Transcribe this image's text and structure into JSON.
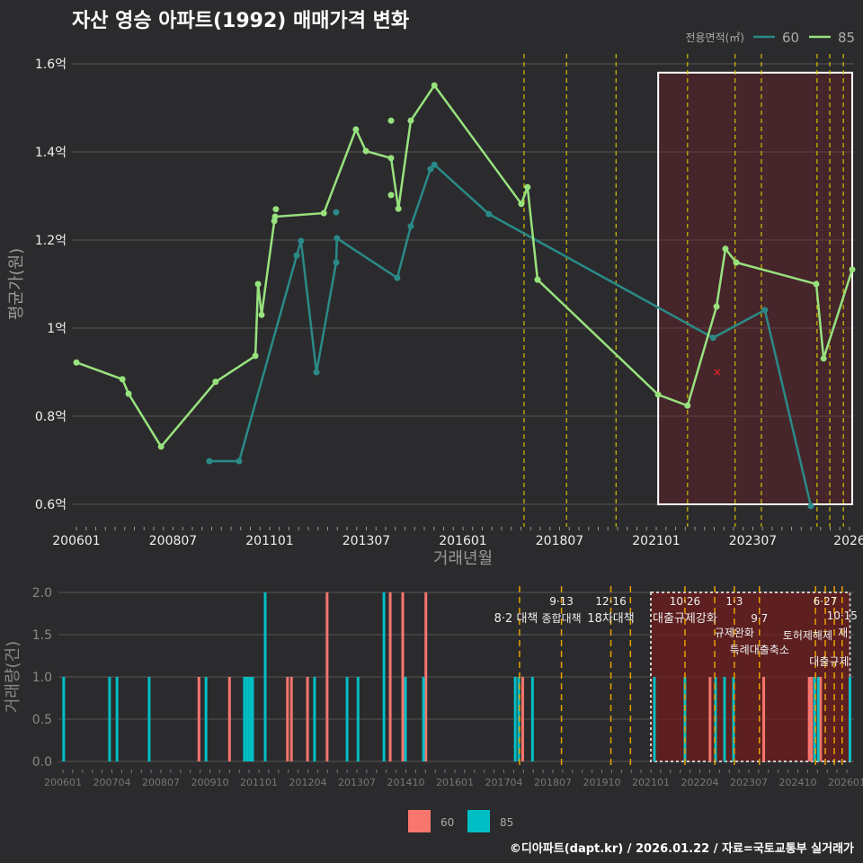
{
  "title": "자산 영승 아파트(1992) 매매가격 변화",
  "footer": "©디아파트(dapt.kr) / 2026.01.22 / 자료=국토교통부 실거래가",
  "chart_data": [
    {
      "type": "line",
      "title": "자산 영승 아파트(1992) 매매가격 변화",
      "xlabel": "거래년월",
      "ylabel": "평균가(원)",
      "ylim": [
        0.57,
        1.63
      ],
      "xlim": [
        2005.95,
        2026.1
      ],
      "yticks": [
        {
          "v": 0.6,
          "l": "0.6억"
        },
        {
          "v": 0.8,
          "l": "0.8억"
        },
        {
          "v": 1.0,
          "l": "1억"
        },
        {
          "v": 1.2,
          "l": "1.2억"
        },
        {
          "v": 1.4,
          "l": "1.4억"
        },
        {
          "v": 1.6,
          "l": "1.6억"
        }
      ],
      "xticks": [
        {
          "v": 2006.0,
          "l": "200601"
        },
        {
          "v": 2008.5,
          "l": "200807"
        },
        {
          "v": 2011.0,
          "l": "201101"
        },
        {
          "v": 2013.5,
          "l": "201307"
        },
        {
          "v": 2016.0,
          "l": "201601"
        },
        {
          "v": 2018.5,
          "l": "201807"
        },
        {
          "v": 2021.0,
          "l": "202101"
        },
        {
          "v": 2023.5,
          "l": "202307"
        },
        {
          "v": 2026.0,
          "l": "2026"
        }
      ],
      "legend": {
        "title": "전용면적(㎡)",
        "position": "top-right"
      },
      "series": [
        {
          "name": "60",
          "color": "#2a8a87",
          "points": [
            [
              2009.44,
              0.698
            ],
            [
              2010.21,
              0.698
            ],
            [
              2011.7,
              1.165
            ],
            [
              2011.81,
              1.198
            ],
            [
              2012.21,
              0.9
            ],
            [
              2012.72,
              1.149
            ],
            [
              2012.74,
              1.204
            ],
            [
              2014.3,
              1.114
            ],
            [
              2014.65,
              1.231
            ],
            [
              2015.16,
              1.361
            ],
            [
              2015.26,
              1.371
            ],
            [
              2016.67,
              1.259
            ],
            [
              2022.47,
              0.978
            ],
            [
              2023.81,
              1.041
            ],
            [
              2025.0,
              0.596
            ]
          ],
          "extra_points": [
            [
              2012.72,
              1.263
            ]
          ]
        },
        {
          "name": "85",
          "color": "#98e27e",
          "points": [
            [
              2006.0,
              0.922
            ],
            [
              2007.19,
              0.884
            ],
            [
              2007.35,
              0.851
            ],
            [
              2008.19,
              0.731
            ],
            [
              2009.6,
              0.878
            ],
            [
              2010.63,
              0.937
            ],
            [
              2010.7,
              1.1
            ],
            [
              2010.79,
              1.03
            ],
            [
              2011.12,
              1.243
            ],
            [
              2011.14,
              1.253
            ],
            [
              2012.4,
              1.261
            ],
            [
              2013.23,
              1.451
            ],
            [
              2013.49,
              1.402
            ],
            [
              2014.14,
              1.386
            ],
            [
              2014.33,
              1.271
            ],
            [
              2014.65,
              1.471
            ],
            [
              2015.26,
              1.551
            ],
            [
              2017.51,
              1.282
            ],
            [
              2017.67,
              1.32
            ],
            [
              2017.93,
              1.11
            ],
            [
              2021.05,
              0.849
            ],
            [
              2021.81,
              0.824
            ],
            [
              2022.56,
              1.049
            ],
            [
              2022.79,
              1.18
            ],
            [
              2023.07,
              1.149
            ],
            [
              2025.14,
              1.1
            ],
            [
              2025.33,
              0.931
            ],
            [
              2026.07,
              1.133
            ]
          ],
          "extra_points": [
            [
              2011.16,
              1.27
            ],
            [
              2014.14,
              1.471
            ],
            [
              2014.14,
              1.302
            ]
          ]
        }
      ],
      "policy_lines": [
        2017.58,
        2018.68,
        2019.96,
        2021.81,
        2023.04,
        2023.72,
        2025.16,
        2025.49,
        2025.84
      ],
      "highlight": {
        "x": [
          2021.05,
          2026.07
        ],
        "y": [
          0.6,
          1.58
        ]
      },
      "marker": [
        2022.58,
        0.9
      ]
    },
    {
      "type": "bar",
      "ylabel": "거래량(건)",
      "ylim": [
        0,
        2
      ],
      "yticks": [
        {
          "v": 0,
          "l": "0.0"
        },
        {
          "v": 0.5,
          "l": "0.5"
        },
        {
          "v": 1.0,
          "l": "1.0"
        },
        {
          "v": 1.5,
          "l": "1.5"
        },
        {
          "v": 2.0,
          "l": "2.0"
        }
      ],
      "xticks": [
        {
          "v": 2006.0,
          "l": "200601"
        },
        {
          "v": 2007.25,
          "l": "200704"
        },
        {
          "v": 2008.5,
          "l": "200807"
        },
        {
          "v": 2009.75,
          "l": "200910"
        },
        {
          "v": 2011.0,
          "l": "201101"
        },
        {
          "v": 2012.25,
          "l": "201204"
        },
        {
          "v": 2013.5,
          "l": "201307"
        },
        {
          "v": 2014.75,
          "l": "201410"
        },
        {
          "v": 2016.0,
          "l": "201601"
        },
        {
          "v": 2017.25,
          "l": "201704"
        },
        {
          "v": 2018.5,
          "l": "201807"
        },
        {
          "v": 2019.75,
          "l": "201910"
        },
        {
          "v": 2021.0,
          "l": "202101"
        },
        {
          "v": 2022.25,
          "l": "202204"
        },
        {
          "v": 2023.5,
          "l": "202307"
        },
        {
          "v": 2024.75,
          "l": "202410"
        },
        {
          "v": 2026.0,
          "l": "202601"
        }
      ],
      "series": [
        {
          "name": "60",
          "color": "#f8766d",
          "bars": [
            [
              2009.47,
              1
            ],
            [
              2010.25,
              1
            ],
            [
              2011.73,
              1
            ],
            [
              2011.83,
              1
            ],
            [
              2012.24,
              1
            ],
            [
              2012.74,
              2
            ],
            [
              2014.35,
              2
            ],
            [
              2014.67,
              2
            ],
            [
              2015.26,
              2
            ],
            [
              2017.73,
              1
            ],
            [
              2022.51,
              1
            ],
            [
              2023.88,
              1
            ],
            [
              2025.04,
              1
            ],
            [
              2025.1,
              1
            ],
            [
              2025.33,
              1
            ]
          ]
        },
        {
          "name": "85",
          "color": "#00bfc4",
          "bars": [
            [
              2006.02,
              1
            ],
            [
              2007.19,
              1
            ],
            [
              2007.38,
              1
            ],
            [
              2008.2,
              1
            ],
            [
              2009.65,
              1
            ],
            [
              2010.63,
              1
            ],
            [
              2010.7,
              1
            ],
            [
              2010.77,
              1
            ],
            [
              2010.84,
              1
            ],
            [
              2011.16,
              2
            ],
            [
              2012.42,
              1
            ],
            [
              2013.25,
              1
            ],
            [
              2013.53,
              1
            ],
            [
              2014.19,
              2
            ],
            [
              2014.74,
              1
            ],
            [
              2015.2,
              1
            ],
            [
              2017.54,
              1
            ],
            [
              2017.63,
              1
            ],
            [
              2017.98,
              1
            ],
            [
              2021.09,
              1
            ],
            [
              2021.87,
              1
            ],
            [
              2022.65,
              1
            ],
            [
              2022.88,
              1
            ],
            [
              2023.11,
              1
            ],
            [
              2025.18,
              1
            ],
            [
              2025.27,
              1
            ],
            [
              2026.08,
              1
            ]
          ]
        }
      ],
      "policy_lines": [
        2017.65,
        2018.72,
        2019.98,
        2020.48,
        2021.87,
        2022.63,
        2023.13,
        2023.77,
        2025.2,
        2025.45,
        2025.68,
        2025.88
      ],
      "highlight": {
        "x": [
          2021.0,
          2026.08
        ],
        "y": [
          0,
          2
        ]
      },
      "annotations": [
        {
          "x": 2017.56,
          "row": 1,
          "text": "8·2 대책"
        },
        {
          "x": 2018.72,
          "row": 0,
          "text": "9·13"
        },
        {
          "x": 2018.72,
          "row": 1,
          "text": "종합대책"
        },
        {
          "x": 2019.98,
          "row": 0,
          "text": "12·16"
        },
        {
          "x": 2019.98,
          "row": 1,
          "text": "18차대책"
        },
        {
          "x": 2021.87,
          "row": 0,
          "text": "10·26"
        },
        {
          "x": 2021.87,
          "row": 1,
          "text": "대출규제강화"
        },
        {
          "x": 2023.13,
          "row": 0,
          "text": "1·3"
        },
        {
          "x": 2023.13,
          "row": 1,
          "text": "규제완화"
        },
        {
          "x": 2023.77,
          "row": 1,
          "text": "9·7"
        },
        {
          "x": 2023.77,
          "row": 2,
          "text": "특례대출축소"
        },
        {
          "x": 2025.0,
          "row": 2,
          "text": "토허제해제"
        },
        {
          "x": 2025.45,
          "row": 0,
          "text": "6·27"
        },
        {
          "x": 2025.88,
          "row": 0,
          "text": "10·15"
        },
        {
          "x": 2025.55,
          "row": 1,
          "text": "대출규제"
        },
        {
          "x": 2025.9,
          "row": 1,
          "text": "재"
        }
      ],
      "legend": {
        "position": "bottom",
        "entries": [
          "60",
          "85"
        ]
      }
    }
  ]
}
